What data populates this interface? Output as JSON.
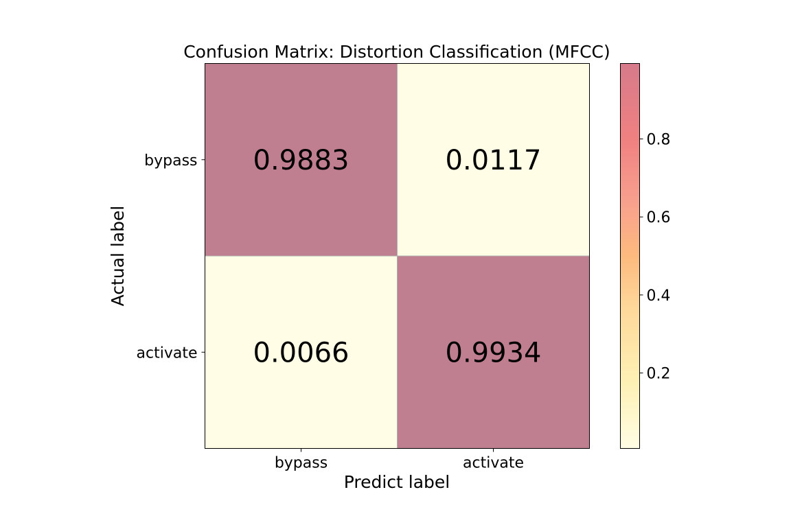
{
  "chart_data": {
    "type": "heatmap",
    "title": "Confusion Matrix: Distortion Classification (MFCC)",
    "xlabel": "Predict label",
    "ylabel": "Actual label",
    "x_categories": [
      "bypass",
      "activate"
    ],
    "y_categories": [
      "bypass",
      "activate"
    ],
    "values": [
      [
        0.9883,
        0.0117
      ],
      [
        0.0066,
        0.9934
      ]
    ],
    "colorbar": {
      "ticks": [
        "0.2",
        "0.4",
        "0.6",
        "0.8"
      ],
      "range": [
        0.0066,
        0.9934
      ],
      "colormap": "YlOrRd (alpha 0.5)",
      "colors": [
        "#fffde4",
        "#fef0b3",
        "#fed89b",
        "#fdba7e",
        "#f8a08e",
        "#f08181",
        "#d77a8b"
      ]
    },
    "cell_colors": {
      "high": "#c07f91",
      "low": "#fffde6"
    }
  }
}
